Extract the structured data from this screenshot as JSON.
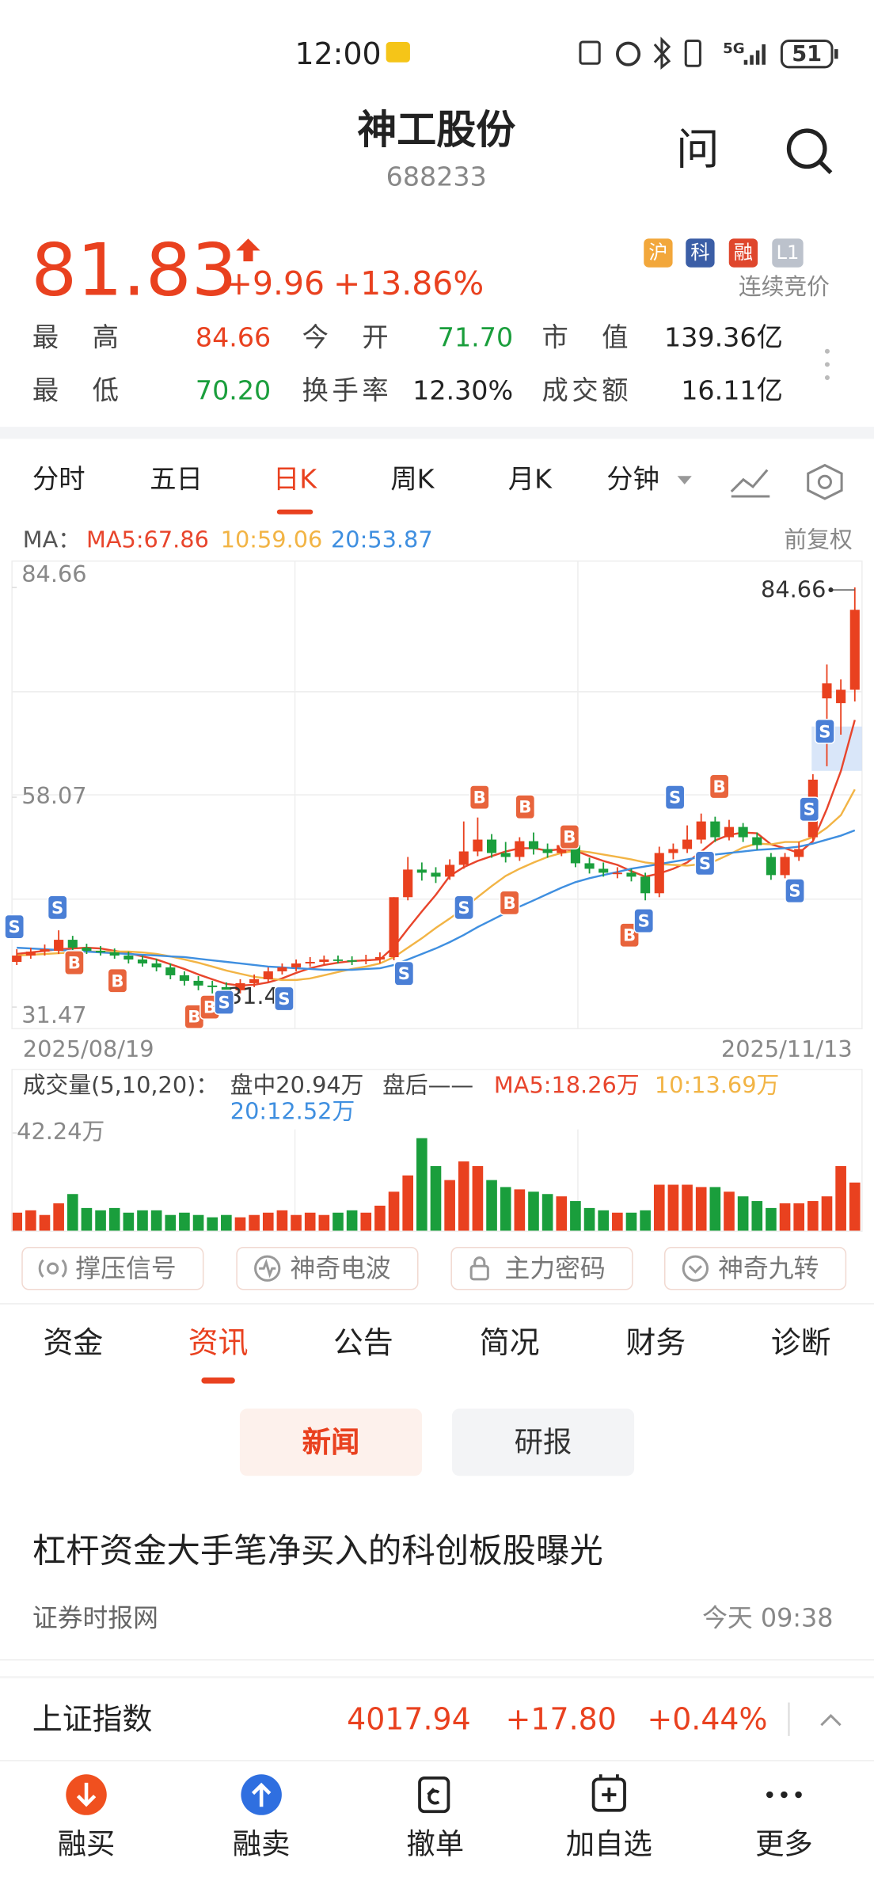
{
  "status_bar": {
    "time": "12:00",
    "network": "5G",
    "battery": "51"
  },
  "header": {
    "name": "神工股份",
    "code": "688233",
    "ask": "问"
  },
  "quote": {
    "price": "81.83",
    "change": "+9.96",
    "change_pct": "+13.86%",
    "tags": [
      "沪",
      "科",
      "融",
      "L1"
    ],
    "status": "连续竞价",
    "stats": [
      {
        "label": "最高",
        "value": "84.66"
      },
      {
        "label": "今开",
        "value": "71.70"
      },
      {
        "label": "市值",
        "value": "139.36亿"
      },
      {
        "label": "最低",
        "value": "70.20"
      },
      {
        "label": "换手率",
        "value": "12.30%"
      },
      {
        "label": "成交额",
        "value": "16.11亿"
      }
    ]
  },
  "chart_tabs": [
    "分时",
    "五日",
    "日K",
    "周K",
    "月K",
    "分钟"
  ],
  "kline": {
    "type": "candlestick",
    "ma_prefix": "MA：",
    "ma_labels": [
      "MA5:67.86",
      "10:59.06",
      "20:53.87"
    ],
    "adjust": "前复权",
    "ylim": [
      31.47,
      84.66
    ],
    "yticks": [
      84.66,
      58.07,
      31.47
    ],
    "high_label": 84.66,
    "low_label": 31.47,
    "start_date": "2025/08/19",
    "end_date": "2025/11/13",
    "up_color": "#e9411f",
    "down_color": "#1a9e3c",
    "ohlc": [
      [
        37.2,
        38.8,
        36.8,
        38.0
      ],
      [
        38.0,
        39.0,
        37.6,
        38.5
      ],
      [
        38.5,
        39.4,
        38.0,
        38.8
      ],
      [
        38.6,
        41.2,
        38.2,
        40.0
      ],
      [
        40.0,
        40.5,
        38.6,
        39.0
      ],
      [
        39.0,
        39.5,
        38.2,
        38.6
      ],
      [
        38.6,
        39.2,
        38.0,
        38.4
      ],
      [
        38.4,
        38.9,
        37.6,
        38.0
      ],
      [
        38.0,
        38.5,
        37.0,
        37.5
      ],
      [
        37.5,
        38.0,
        36.6,
        37.0
      ],
      [
        37.0,
        37.6,
        36.0,
        36.5
      ],
      [
        36.5,
        37.0,
        35.0,
        35.5
      ],
      [
        35.5,
        36.0,
        34.2,
        34.8
      ],
      [
        34.8,
        35.4,
        33.6,
        34.2
      ],
      [
        34.2,
        34.8,
        33.2,
        34.0
      ],
      [
        34.0,
        34.6,
        31.47,
        33.6
      ],
      [
        33.6,
        35.0,
        33.2,
        34.5
      ],
      [
        34.5,
        35.6,
        34.0,
        35.0
      ],
      [
        35.0,
        36.5,
        34.6,
        36.0
      ],
      [
        36.0,
        37.0,
        35.6,
        36.5
      ],
      [
        36.5,
        37.5,
        36.0,
        37.0
      ],
      [
        37.0,
        37.8,
        36.6,
        37.2
      ],
      [
        37.2,
        38.0,
        36.8,
        37.5
      ],
      [
        37.5,
        38.0,
        37.0,
        37.4
      ],
      [
        37.4,
        37.9,
        36.8,
        37.3
      ],
      [
        37.3,
        38.1,
        36.9,
        37.5
      ],
      [
        37.5,
        38.4,
        37.0,
        37.8
      ],
      [
        37.8,
        45.4,
        37.4,
        45.4
      ],
      [
        45.4,
        50.5,
        45.0,
        48.9
      ],
      [
        48.9,
        49.8,
        47.5,
        48.5
      ],
      [
        48.5,
        49.2,
        47.2,
        48.0
      ],
      [
        48.0,
        50.2,
        47.6,
        49.5
      ],
      [
        49.5,
        55.0,
        49.0,
        51.2
      ],
      [
        51.2,
        55.5,
        50.6,
        52.7
      ],
      [
        52.7,
        53.4,
        50.4,
        51.0
      ],
      [
        51.0,
        52.4,
        49.8,
        50.5
      ],
      [
        50.5,
        53.0,
        50.0,
        52.5
      ],
      [
        52.5,
        53.6,
        50.8,
        51.5
      ],
      [
        51.5,
        52.2,
        50.4,
        51.0
      ],
      [
        51.0,
        52.8,
        50.6,
        52.0
      ],
      [
        52.0,
        54.2,
        49.2,
        49.7
      ],
      [
        49.7,
        50.4,
        48.4,
        49.0
      ],
      [
        49.0,
        49.8,
        48.0,
        48.5
      ],
      [
        48.5,
        49.2,
        47.8,
        48.5
      ],
      [
        48.5,
        49.0,
        47.4,
        48.0
      ],
      [
        48.0,
        48.5,
        45.0,
        45.9
      ],
      [
        45.9,
        51.8,
        45.4,
        51.0
      ],
      [
        51.0,
        52.2,
        50.2,
        51.5
      ],
      [
        51.5,
        54.5,
        51.0,
        52.7
      ],
      [
        52.7,
        56.0,
        52.2,
        55.0
      ],
      [
        55.0,
        55.6,
        52.4,
        53.0
      ],
      [
        53.0,
        55.2,
        52.6,
        54.3
      ],
      [
        54.3,
        54.8,
        52.4,
        53.0
      ],
      [
        53.0,
        53.6,
        51.4,
        52.0
      ],
      [
        50.5,
        51.0,
        47.6,
        48.2
      ],
      [
        48.2,
        51.0,
        47.8,
        50.5
      ],
      [
        50.5,
        52.4,
        50.0,
        51.5
      ],
      [
        53.0,
        61.0,
        52.6,
        60.3
      ],
      [
        70.6,
        74.9,
        62.0,
        72.5
      ],
      [
        70.0,
        73.0,
        66.0,
        71.7
      ],
      [
        71.7,
        84.66,
        70.2,
        81.83
      ]
    ],
    "ma": [
      {
        "name": "MA5",
        "color": "#e8452c",
        "values": [
          38.2,
          38.4,
          38.6,
          38.8,
          38.9,
          39.0,
          38.9,
          38.6,
          38.3,
          37.9,
          37.5,
          36.9,
          36.3,
          35.6,
          35.0,
          34.4,
          34.2,
          34.3,
          34.6,
          35.1,
          35.8,
          36.4,
          36.8,
          37.1,
          37.3,
          37.4,
          37.5,
          39.1,
          41.4,
          43.6,
          45.7,
          48.1,
          49.2,
          50.0,
          50.6,
          51.2,
          51.6,
          51.6,
          51.3,
          51.5,
          51.3,
          50.6,
          50.0,
          49.5,
          48.7,
          48.0,
          48.4,
          49.0,
          49.8,
          51.2,
          52.6,
          53.3,
          53.6,
          53.5,
          52.1,
          51.6,
          51.0,
          52.5,
          56.6,
          61.4,
          67.86
        ]
      },
      {
        "name": "MA10",
        "color": "#f2b445",
        "values": [
          38.0,
          38.1,
          38.2,
          38.3,
          38.4,
          38.5,
          38.5,
          38.5,
          38.5,
          38.4,
          38.2,
          37.9,
          37.5,
          37.1,
          36.6,
          36.1,
          35.7,
          35.3,
          35.1,
          34.9,
          34.9,
          35.1,
          35.5,
          35.9,
          36.3,
          36.6,
          37.0,
          37.8,
          39.0,
          40.2,
          41.5,
          42.7,
          44.0,
          45.4,
          46.8,
          48.1,
          49.0,
          49.8,
          50.5,
          51.0,
          51.3,
          51.1,
          50.8,
          50.5,
          50.2,
          49.8,
          49.6,
          49.5,
          49.4,
          49.6,
          50.0,
          50.8,
          51.7,
          52.2,
          52.1,
          52.4,
          52.4,
          53.0,
          54.2,
          55.8,
          59.06
        ]
      },
      {
        "name": "MA20",
        "color": "#3f8fe0",
        "values": [
          39.0,
          38.9,
          38.8,
          38.7,
          38.6,
          38.5,
          38.4,
          38.3,
          38.2,
          38.1,
          38.0,
          37.9,
          37.8,
          37.6,
          37.4,
          37.2,
          37.0,
          36.8,
          36.6,
          36.5,
          36.4,
          36.3,
          36.2,
          36.2,
          36.2,
          36.3,
          36.4,
          36.8,
          37.5,
          38.2,
          38.9,
          39.7,
          40.6,
          41.6,
          42.5,
          43.4,
          44.2,
          45.0,
          45.8,
          46.6,
          47.3,
          47.8,
          48.2,
          48.6,
          49.0,
          49.3,
          49.6,
          49.9,
          50.2,
          50.5,
          50.8,
          51.0,
          51.2,
          51.4,
          51.5,
          51.6,
          51.8,
          52.2,
          52.7,
          53.2,
          53.87
        ]
      }
    ],
    "signal_labels": {
      "buy": "B",
      "sell": "S"
    },
    "volume": {
      "legend": [
        "成交量(5,10,20)：",
        "盘中20.94万",
        "盘后——",
        "MA5:18.26万",
        "10:13.69万",
        "20:12.52万"
      ],
      "ylim": [
        0,
        42.24
      ],
      "yticks": [
        {
          "value": 42.24,
          "label": "42.24万"
        }
      ],
      "values": [
        8,
        9,
        7,
        12,
        16,
        10,
        9,
        10,
        8,
        9,
        9,
        7,
        8,
        7,
        6,
        7,
        6,
        7,
        8,
        9,
        7,
        8,
        7,
        8,
        9,
        8,
        11,
        17,
        24,
        40,
        28,
        22,
        30,
        28,
        22,
        19,
        18,
        17,
        16,
        15,
        13,
        10,
        9,
        8,
        8,
        9,
        20,
        20,
        20,
        19,
        19,
        17,
        15,
        13,
        10,
        12,
        12,
        13,
        15,
        28,
        20.94
      ]
    }
  },
  "features": [
    "撑压信号",
    "神奇电波",
    "主力密码",
    "神奇九转"
  ],
  "info_tabs": [
    "资金",
    "资讯",
    "公告",
    "简况",
    "财务",
    "诊断"
  ],
  "sub_tabs": [
    "新闻",
    "研报"
  ],
  "news": {
    "title": "杠杆资金大手笔净买入的科创板股曝光",
    "source": "证券时报网",
    "time": "今天 09:38"
  },
  "index_bar": {
    "name": "上证指数",
    "value": "4017.94",
    "change": "+17.80",
    "change_pct": "+0.44%"
  },
  "bottom_nav": [
    "融买",
    "融卖",
    "撤单",
    "加自选",
    "更多"
  ]
}
